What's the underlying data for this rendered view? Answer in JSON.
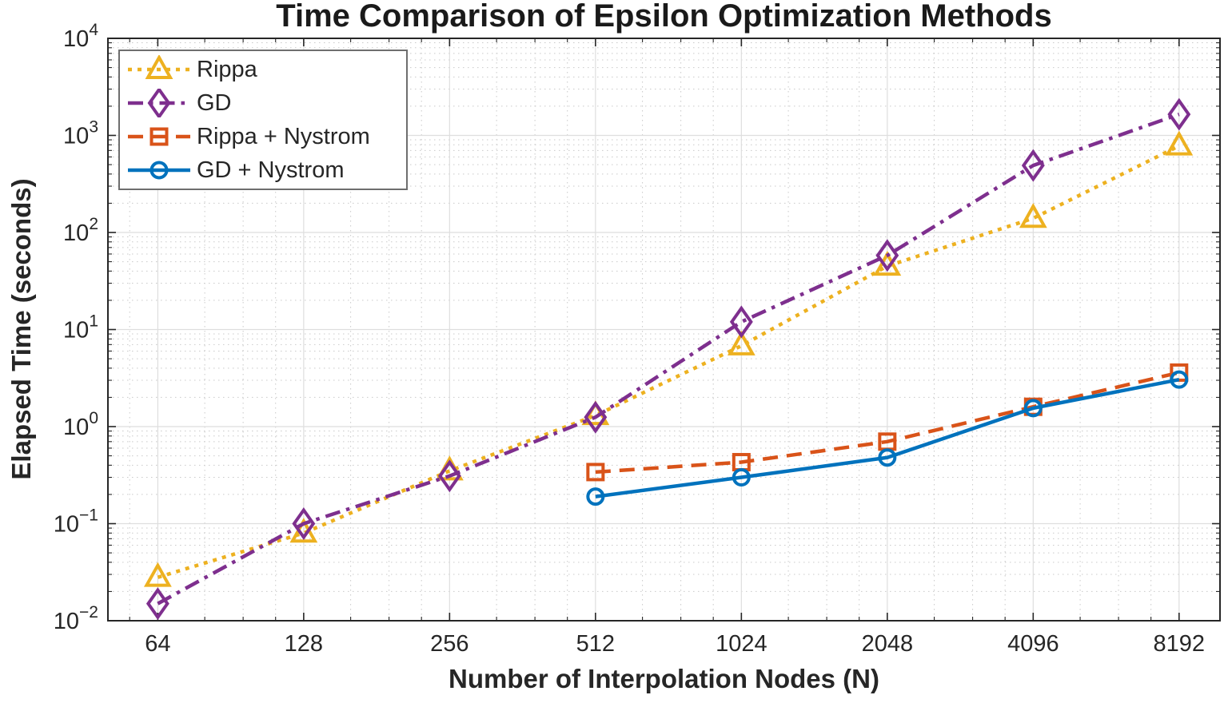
{
  "chart_data": {
    "type": "line",
    "title": "Time Comparison of Epsilon Optimization Methods",
    "xlabel": "Number of Interpolation Nodes (N)",
    "ylabel": "Elapsed Time (seconds)",
    "x_scale": "log2",
    "y_scale": "log10",
    "xlim": [
      50.5,
      9950
    ],
    "ylim": [
      0.01,
      10000
    ],
    "x_ticks": [
      64,
      128,
      256,
      512,
      1024,
      2048,
      4096,
      8192
    ],
    "y_tick_exponents": [
      -2,
      -1,
      0,
      1,
      2,
      3,
      4
    ],
    "grid": true,
    "minor_grid": true,
    "legend_position": "top-left",
    "axis_color": "#262626",
    "major_grid_color": "#dedede",
    "minor_grid_color": "#c9c9c9",
    "series": [
      {
        "name": "Rippa",
        "color": "#EDB120",
        "line": "dotted",
        "marker": "triangle",
        "x": [
          64,
          128,
          256,
          512,
          1024,
          2048,
          4096,
          8192
        ],
        "y": [
          0.028,
          0.08,
          0.35,
          1.3,
          6.8,
          45,
          140,
          780
        ]
      },
      {
        "name": "GD",
        "color": "#7E2F8E",
        "line": "dashdot",
        "marker": "diamond",
        "x": [
          64,
          128,
          256,
          512,
          1024,
          2048,
          4096,
          8192
        ],
        "y": [
          0.015,
          0.1,
          0.31,
          1.25,
          12,
          58,
          490,
          1650
        ]
      },
      {
        "name": "Rippa + Nystrom",
        "color": "#D95319",
        "line": "dashed",
        "marker": "square",
        "x": [
          512,
          1024,
          2048,
          4096,
          8192
        ],
        "y": [
          0.34,
          0.43,
          0.7,
          1.6,
          3.6
        ]
      },
      {
        "name": "GD + Nystrom",
        "color": "#0072BD",
        "line": "solid",
        "marker": "circle",
        "x": [
          512,
          1024,
          2048,
          4096,
          8192
        ],
        "y": [
          0.19,
          0.3,
          0.48,
          1.55,
          3.05
        ]
      }
    ]
  }
}
